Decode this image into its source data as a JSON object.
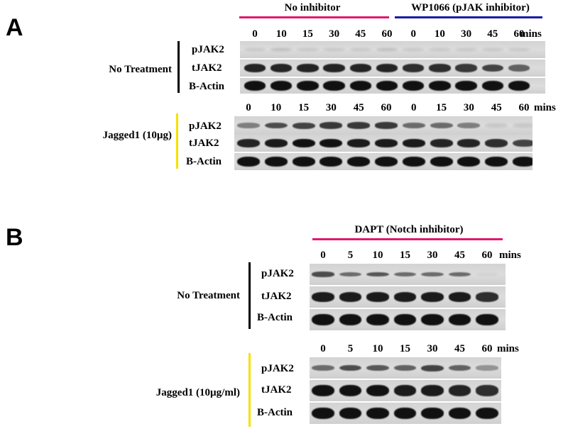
{
  "panel_a": {
    "letter": "A",
    "groups": [
      {
        "label": "No inhibitor",
        "color": "#e0186e"
      },
      {
        "label": "WP1066 (pJAK inhibitor)",
        "color": "#1a1aa8"
      }
    ],
    "units": "mins",
    "blocks": [
      {
        "condition": "No Treatment",
        "bar_color": "#000000",
        "timepoints": [
          "0",
          "10",
          "15",
          "30",
          "45",
          "60",
          "0",
          "10",
          "30",
          "45",
          "60"
        ],
        "rows": [
          {
            "label": "pJAK2",
            "intensity": [
              0.1,
              0.15,
              0.1,
              0.1,
              0.1,
              0.15,
              0.1,
              0.1,
              0.1,
              0.1,
              0.1
            ]
          },
          {
            "label": "tJAK2",
            "intensity": [
              0.9,
              0.9,
              0.9,
              0.9,
              0.9,
              0.9,
              0.85,
              0.85,
              0.8,
              0.75,
              0.6
            ]
          },
          {
            "label": "B-Actin",
            "intensity": [
              1,
              1,
              1,
              1,
              1,
              1,
              1,
              1,
              1,
              1,
              1
            ]
          }
        ]
      },
      {
        "condition": "Jagged1 (10µg)",
        "bar_color": "#f5e000",
        "timepoints": [
          "0",
          "10",
          "15",
          "30",
          "45",
          "60",
          "0",
          "15",
          "30",
          "45",
          "60"
        ],
        "rows": [
          {
            "label": "pJAK2",
            "intensity": [
              0.45,
              0.7,
              0.75,
              0.8,
              0.8,
              0.8,
              0.55,
              0.55,
              0.45,
              0.1,
              0.1
            ]
          },
          {
            "label": "tJAK2",
            "intensity": [
              0.9,
              0.95,
              1,
              1,
              0.95,
              0.95,
              0.95,
              0.9,
              0.9,
              0.85,
              0.75
            ]
          },
          {
            "label": "B-Actin",
            "intensity": [
              1,
              1,
              1,
              1,
              1,
              1,
              1,
              1,
              1,
              1,
              1
            ]
          }
        ]
      }
    ]
  },
  "panel_b": {
    "letter": "B",
    "groups": [
      {
        "label": "DAPT (Notch inhibitor)",
        "color": "#e0186e"
      }
    ],
    "units": "mins",
    "blocks": [
      {
        "condition": "No Treatment",
        "bar_color": "#000000",
        "timepoints": [
          "0",
          "5",
          "10",
          "15",
          "30",
          "45",
          "60"
        ],
        "rows": [
          {
            "label": "pJAK2",
            "intensity": [
              0.7,
              0.55,
              0.65,
              0.55,
              0.55,
              0.55,
              0.05
            ]
          },
          {
            "label": "tJAK2",
            "intensity": [
              0.95,
              0.95,
              0.95,
              0.95,
              0.95,
              0.95,
              0.85
            ]
          },
          {
            "label": "B-Actin",
            "intensity": [
              1,
              1,
              1,
              1,
              1,
              1,
              1
            ]
          }
        ]
      },
      {
        "condition": "Jagged1 (10µg/ml)",
        "bar_color": "#f5e000",
        "timepoints": [
          "0",
          "5",
          "10",
          "15",
          "30",
          "45",
          "60"
        ],
        "rows": [
          {
            "label": "pJAK2",
            "intensity": [
              0.55,
              0.7,
              0.65,
              0.6,
              0.75,
              0.6,
              0.35
            ]
          },
          {
            "label": "tJAK2",
            "intensity": [
              1,
              1,
              1,
              0.95,
              0.95,
              0.9,
              0.85
            ]
          },
          {
            "label": "B-Actin",
            "intensity": [
              1,
              1,
              1,
              1,
              1,
              1,
              1
            ]
          }
        ]
      }
    ]
  }
}
